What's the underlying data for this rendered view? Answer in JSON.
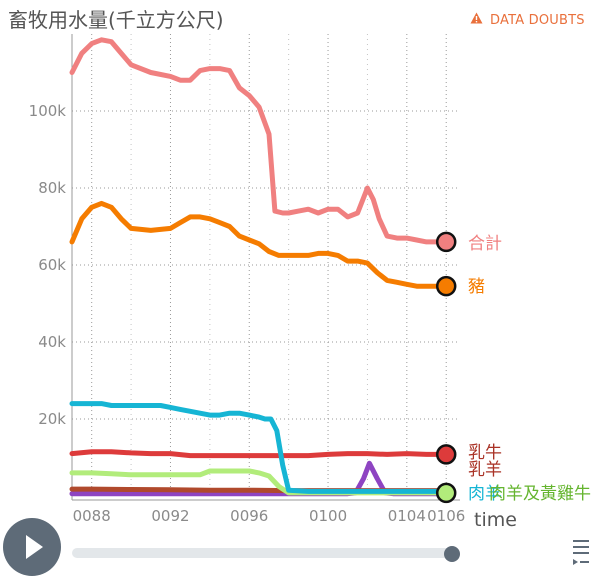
{
  "header": {
    "title": "畜牧用水量(千立方公尺)",
    "doubts_label": "DATA DOUBTS",
    "doubts_icon": "warning-icon"
  },
  "controls": {
    "play_icon": "play-icon",
    "slider_value": 1.0,
    "menu_icon": "hamburger-icon"
  },
  "colors": {
    "accent": "#e9703c",
    "control": "#5e6b78"
  },
  "chart_data": {
    "type": "line",
    "xlabel": "time",
    "ylabel": "畜牧用水量(千立方公尺)",
    "xlim": [
      87,
      106.7
    ],
    "ylim": [
      0,
      120000
    ],
    "x_ticks": [
      88,
      92,
      96,
      100,
      104,
      106
    ],
    "x_tick_labels": [
      "0088",
      "0092",
      "0096",
      "0100",
      "0104",
      "0106"
    ],
    "y_ticks": [
      20000,
      40000,
      60000,
      80000,
      100000
    ],
    "y_tick_labels": [
      "20k",
      "40k",
      "60k",
      "80k",
      "100k"
    ],
    "grid": true,
    "series": [
      {
        "name": "合計",
        "color": "#f08080",
        "x": [
          87,
          87.5,
          88,
          88.5,
          89,
          89.5,
          90,
          91,
          92,
          92.5,
          93,
          93.5,
          94,
          94.5,
          95,
          95.5,
          96,
          96.5,
          97,
          97.3,
          97.7,
          98,
          98.5,
          99,
          99.5,
          100,
          100.5,
          101,
          101.5,
          102,
          102.3,
          102.6,
          103,
          103.5,
          104,
          104.5,
          105,
          105.5,
          106
        ],
        "y": [
          110000,
          115000,
          117500,
          118500,
          118000,
          115000,
          112000,
          110000,
          109000,
          108000,
          108000,
          110500,
          111000,
          111000,
          110500,
          106000,
          104000,
          101000,
          94000,
          74000,
          73500,
          73500,
          74000,
          74500,
          73500,
          74500,
          74500,
          72500,
          73500,
          80000,
          77000,
          72000,
          67500,
          67000,
          67000,
          66500,
          66000,
          66000,
          66000
        ]
      },
      {
        "name": "豬",
        "color": "#f57c00",
        "x": [
          87,
          87.5,
          88,
          88.5,
          89,
          89.5,
          90,
          91,
          92,
          92.5,
          93,
          93.5,
          94,
          94.5,
          95,
          95.5,
          96,
          96.5,
          97,
          97.5,
          98,
          98.5,
          99,
          99.5,
          100,
          100.5,
          101,
          101.5,
          102,
          102.5,
          103,
          103.5,
          104,
          104.5,
          105,
          105.5,
          106
        ],
        "y": [
          66000,
          72000,
          75000,
          76000,
          75000,
          72000,
          69500,
          69000,
          69500,
          71000,
          72500,
          72500,
          72000,
          71000,
          70000,
          67500,
          66500,
          65500,
          63500,
          62500,
          62500,
          62500,
          62500,
          63000,
          63000,
          62500,
          61000,
          61000,
          60500,
          58000,
          56000,
          55500,
          55000,
          54500,
          54500,
          54500,
          54500
        ]
      },
      {
        "name": "",
        "color": "#16b5d4",
        "x": [
          87,
          87.5,
          88,
          88.5,
          89,
          89.5,
          90,
          90.5,
          91,
          91.5,
          92,
          92.5,
          93,
          93.5,
          94,
          94.5,
          95,
          95.5,
          96,
          96.5,
          96.8,
          97.1,
          97.4,
          97.7,
          98,
          99,
          100,
          101,
          102,
          103,
          104,
          105,
          106
        ],
        "y": [
          24000,
          24000,
          24000,
          24000,
          23500,
          23500,
          23500,
          23500,
          23500,
          23500,
          23000,
          22500,
          22000,
          21500,
          21000,
          21000,
          21500,
          21500,
          21000,
          20500,
          20000,
          20000,
          17000,
          8000,
          1500,
          1200,
          1200,
          1200,
          1200,
          1200,
          1200,
          1200,
          1200
        ]
      },
      {
        "name": "乳牛",
        "color": "#dd3b3b",
        "x": [
          87,
          88,
          89,
          90,
          91,
          92,
          93,
          94,
          95,
          96,
          97,
          98,
          99,
          100,
          101,
          102,
          103,
          104,
          105,
          106
        ],
        "y": [
          11000,
          11500,
          11500,
          11200,
          11000,
          11000,
          10500,
          10500,
          10500,
          10500,
          10500,
          10500,
          10500,
          10800,
          11000,
          11000,
          10800,
          11000,
          10800,
          10800
        ]
      },
      {
        "name": "乳羊",
        "color": "#b0492c",
        "x": [
          87,
          88,
          90,
          92,
          94,
          96,
          98,
          100,
          102,
          104,
          106
        ],
        "y": [
          1800,
          1800,
          1700,
          1600,
          1500,
          1500,
          1400,
          1400,
          1400,
          1400,
          1400
        ]
      },
      {
        "name": "",
        "color": "#8e44c2",
        "x": [
          87,
          90,
          94,
          98,
          100,
          101,
          101.4,
          101.8,
          102.1,
          102.5,
          102.9,
          103.3,
          104,
          106
        ],
        "y": [
          600,
          600,
          600,
          600,
          600,
          600,
          800,
          4500,
          8500,
          4500,
          800,
          600,
          600,
          600
        ]
      },
      {
        "name": "肉羊及黃雞牛",
        "color": "#b2ec7b",
        "x": [
          87,
          88,
          89,
          90,
          91,
          92,
          93,
          93.5,
          94,
          95,
          96,
          96.5,
          97,
          97.5,
          98,
          99,
          100,
          101,
          102,
          103,
          104,
          105,
          106
        ],
        "y": [
          6000,
          6000,
          5800,
          5500,
          5500,
          5500,
          5500,
          5500,
          6500,
          6500,
          6500,
          6000,
          5200,
          2500,
          800,
          800,
          800,
          800,
          800,
          800,
          800,
          800,
          800
        ]
      }
    ],
    "end_labels": [
      {
        "text": "合計",
        "color": "#f08080"
      },
      {
        "text": "豬",
        "color": "#f57c00"
      },
      {
        "text": "乳牛",
        "color": "#a93226"
      },
      {
        "text": "乳羊",
        "color": "#a93226"
      },
      {
        "text": "肉羊",
        "color": "#16b5d4"
      },
      {
        "text": "肉羊及黃雞牛",
        "color": "#65b52f"
      }
    ]
  }
}
